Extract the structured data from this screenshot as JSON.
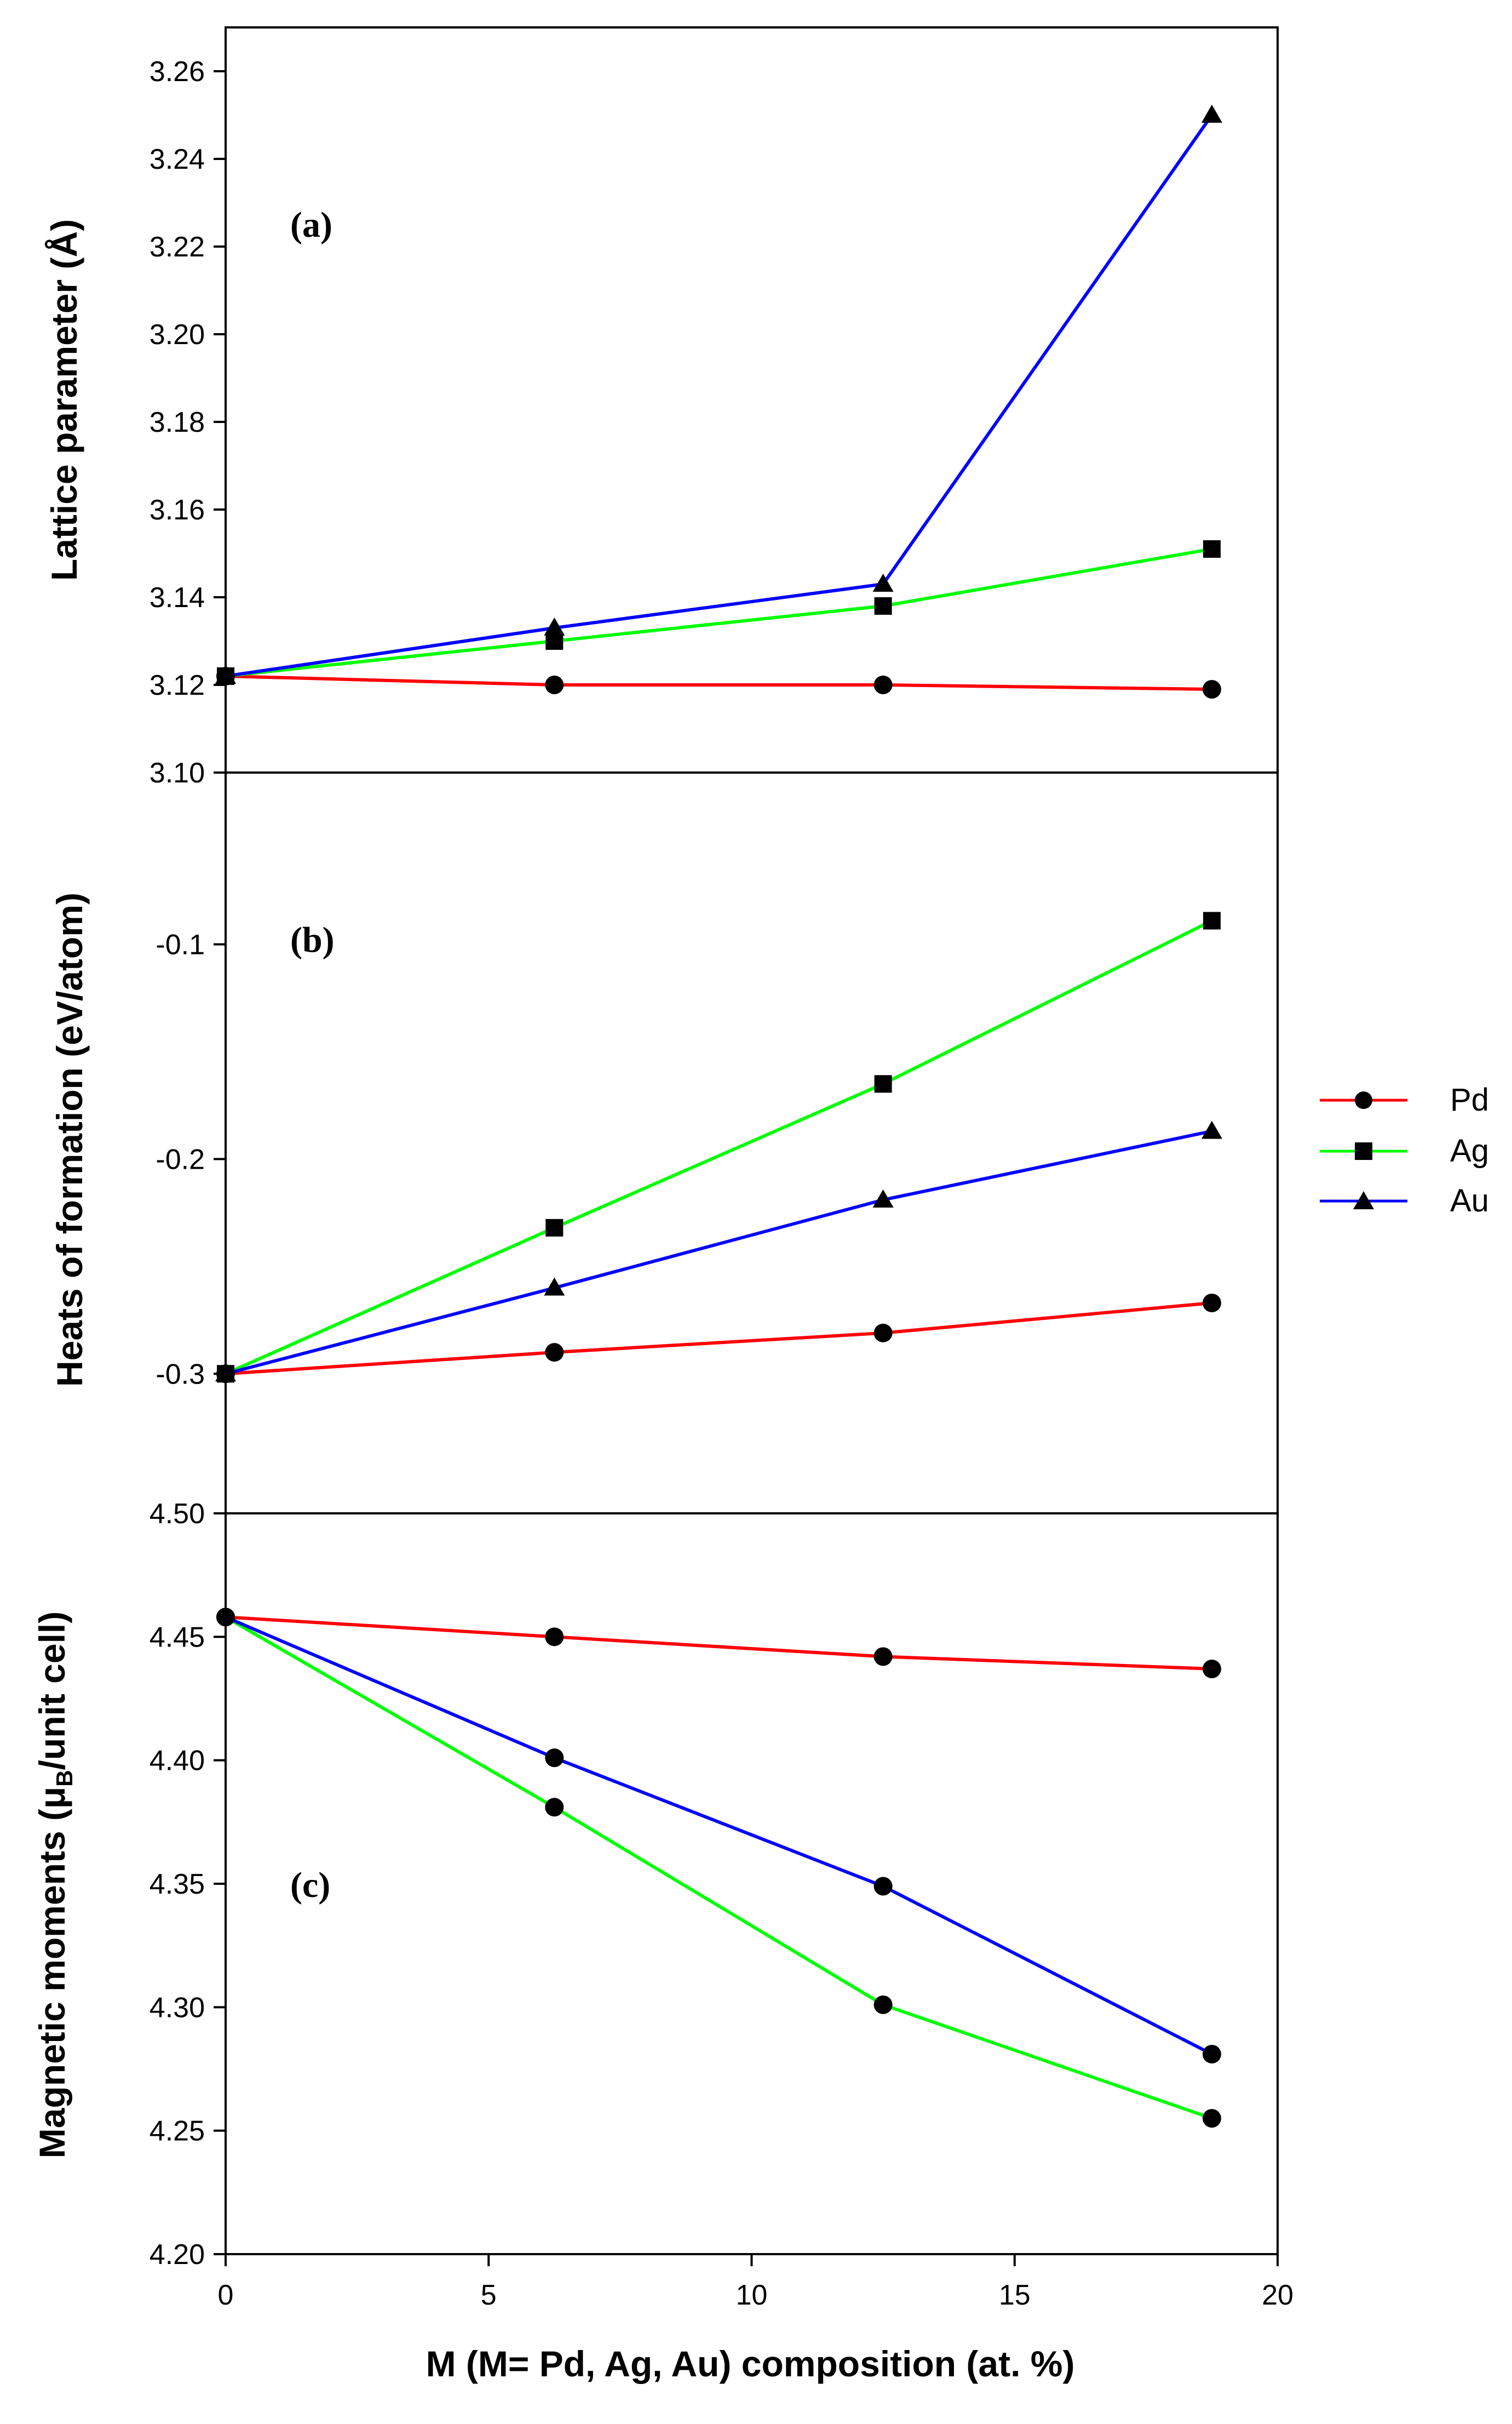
{
  "chart_data": [
    {
      "type": "line",
      "panel_label": "(a)",
      "ylabel": "Lattice parameter (Å)",
      "xlabel": "",
      "x": [
        0,
        6.25,
        12.5,
        18.75
      ],
      "xlim": [
        0,
        20
      ],
      "ylim": [
        3.1,
        3.27
      ],
      "yticks": [
        "3.10",
        "3.12",
        "3.14",
        "3.16",
        "3.18",
        "3.20",
        "3.22",
        "3.24",
        "3.26"
      ],
      "series": [
        {
          "name": "Pd",
          "color": "#ff0000",
          "marker": "circle",
          "values": [
            3.122,
            3.12,
            3.12,
            3.119
          ]
        },
        {
          "name": "Ag",
          "color": "#00ff00",
          "marker": "square",
          "values": [
            3.122,
            3.13,
            3.138,
            3.151
          ]
        },
        {
          "name": "Au",
          "color": "#0000ff",
          "marker": "triangle",
          "values": [
            3.122,
            3.133,
            3.143,
            3.25
          ]
        }
      ]
    },
    {
      "type": "line",
      "panel_label": "(b)",
      "ylabel": "Heats of formation (eV/atom)",
      "xlabel": "",
      "x": [
        0,
        6.25,
        12.5,
        18.75
      ],
      "xlim": [
        0,
        20
      ],
      "ylim": [
        -0.365,
        -0.02
      ],
      "yticks": [
        "-0.1",
        "-0.2",
        "-0.3"
      ],
      "series": [
        {
          "name": "Pd",
          "color": "#ff0000",
          "marker": "circle",
          "values": [
            -0.3,
            -0.29,
            -0.281,
            -0.267
          ]
        },
        {
          "name": "Ag",
          "color": "#00ff00",
          "marker": "square",
          "values": [
            -0.3,
            -0.232,
            -0.165,
            -0.089
          ]
        },
        {
          "name": "Au",
          "color": "#0000ff",
          "marker": "triangle",
          "values": [
            -0.3,
            -0.26,
            -0.219,
            -0.187
          ]
        }
      ]
    },
    {
      "type": "line",
      "panel_label": "(c)",
      "ylabel_main": "Magnetic moments (",
      "ylabel_mu": "μ",
      "ylabel_sub": "B",
      "ylabel_rest": "/unit cell)",
      "xlabel": "M (M= Pd, Ag, Au) composition (at. %)",
      "x": [
        0,
        6.25,
        12.5,
        18.75
      ],
      "xlim": [
        0,
        20
      ],
      "ylim": [
        4.2,
        4.5
      ],
      "xticks": [
        "0",
        "5",
        "10",
        "15",
        "20"
      ],
      "yticks": [
        "4.20",
        "4.25",
        "4.30",
        "4.35",
        "4.40",
        "4.45",
        "4.50"
      ],
      "series": [
        {
          "name": "Pd",
          "color": "#ff0000",
          "marker": "circle",
          "values": [
            4.458,
            4.45,
            4.442,
            4.437
          ]
        },
        {
          "name": "Ag",
          "color": "#00ff00",
          "marker": "circle",
          "values": [
            4.458,
            4.381,
            4.301,
            4.255
          ]
        },
        {
          "name": "Au",
          "color": "#0000ff",
          "marker": "circle",
          "values": [
            4.458,
            4.401,
            4.349,
            4.281
          ]
        }
      ]
    }
  ],
  "legend": {
    "placement": "right",
    "items": [
      {
        "name": "Pd",
        "color": "#ff0000",
        "marker": "circle"
      },
      {
        "name": "Ag",
        "color": "#00ff00",
        "marker": "square"
      },
      {
        "name": "Au",
        "color": "#0000ff",
        "marker": "triangle"
      }
    ]
  }
}
